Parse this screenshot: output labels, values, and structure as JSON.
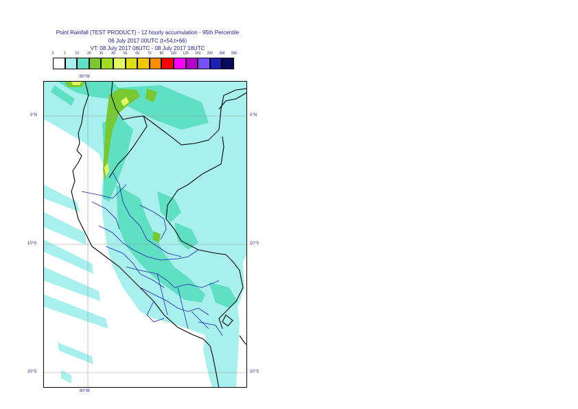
{
  "title": {
    "line1": "Point Rainfall (TEST PRODUCT) - 12 hourly accumulation - 95th Percentile",
    "line2": "06 July 2017 00UTC (t+54,t+66)",
    "line3": "VT: 08 July 2017 06UTC - 08 July 2017 18UTC"
  },
  "legend": {
    "ticks": [
      "0",
      "1",
      "10",
      "20",
      "30",
      "40",
      "50",
      "60",
      "70",
      "80",
      "100",
      "125",
      "150",
      "200",
      "300",
      "500"
    ],
    "colors": [
      "#ffffff",
      "#a8f0ee",
      "#5fe0c2",
      "#78c832",
      "#a0dc1e",
      "#e6f564",
      "#dede14",
      "#f0c800",
      "#fa8c00",
      "#ff0000",
      "#ff00ff",
      "#b400c8",
      "#7850ff",
      "#1e1eb4",
      "#0a0a5a"
    ]
  },
  "axes": {
    "lon_top": "80°W",
    "lon_bottom": "80°W",
    "lat_left": [
      "0°N",
      "10°S",
      "20°S"
    ],
    "lat_right": [
      "0°N",
      "10°S",
      "20°S"
    ]
  },
  "map": {
    "ocean_color": "#ffffff",
    "light_rain_color": "#a8f0ee",
    "moderate_rain_color": "#5fe0c2",
    "heavy_rain_color": "#78c832",
    "border_color": "#000000",
    "region_border_color": "#1e1eb4",
    "graticule_color": "#999999"
  }
}
